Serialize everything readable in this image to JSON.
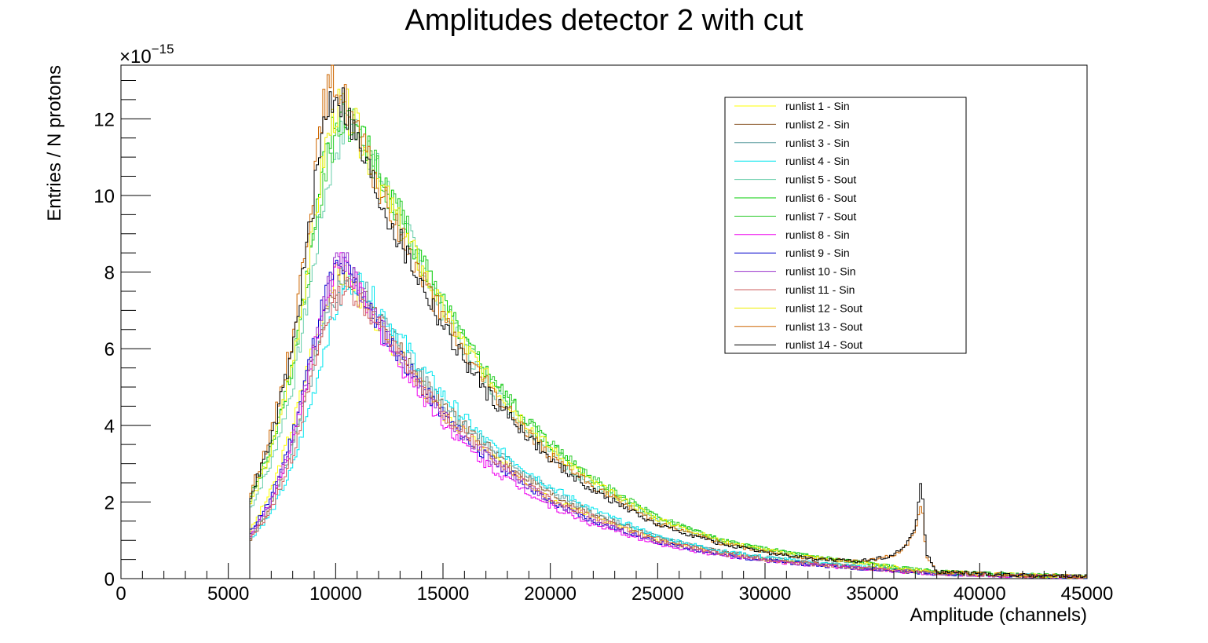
{
  "chart_data": {
    "type": "line",
    "style": "step-histogram",
    "title": "Amplitudes detector 2 with cut",
    "xlabel": "Amplitude (channels)",
    "ylabel": "Entries / N protons",
    "y_multiplier": "×10",
    "y_exponent": "−15",
    "xlim": [
      0,
      45000
    ],
    "ylim": [
      0,
      13.4
    ],
    "x_ticks": [
      0,
      5000,
      10000,
      15000,
      20000,
      25000,
      30000,
      35000,
      40000,
      45000
    ],
    "x_tick_labels": [
      "0",
      "5000",
      "10000",
      "15000",
      "20000",
      "25000",
      "30000",
      "35000",
      "40000",
      "45000"
    ],
    "y_ticks": [
      0,
      2,
      4,
      6,
      8,
      10,
      12
    ],
    "y_tick_labels": [
      "0",
      "2",
      "4",
      "6",
      "8",
      "10",
      "12"
    ],
    "legend_position": "top-right",
    "x": [
      6000,
      7000,
      8000,
      9000,
      9500,
      10000,
      10500,
      11000,
      11500,
      12000,
      13000,
      14000,
      15000,
      16000,
      17000,
      18000,
      20000,
      22000,
      25000,
      28000,
      30000,
      32000,
      34000,
      35000,
      36000,
      36500,
      37000,
      37300,
      37500,
      38000,
      40000,
      42000,
      45000
    ],
    "series": [
      {
        "name": "runlist 1 - Sin",
        "color": "#ffff00",
        "values": [
          1.2,
          2.3,
          4.0,
          6.2,
          7.2,
          7.9,
          7.9,
          7.5,
          7.0,
          6.6,
          5.8,
          5.0,
          4.3,
          3.8,
          3.3,
          2.9,
          2.1,
          1.6,
          1.0,
          0.65,
          0.5,
          0.4,
          0.3,
          0.25,
          0.2,
          0.18,
          0.16,
          0.15,
          0.15,
          0.13,
          0.1,
          0.08,
          0.05
        ]
      },
      {
        "name": "runlist 2 - Sin",
        "color": "#8b5a2b",
        "values": [
          1.0,
          1.9,
          3.5,
          5.8,
          6.9,
          7.7,
          8.0,
          7.7,
          7.2,
          6.8,
          6.0,
          5.2,
          4.5,
          4.0,
          3.5,
          3.0,
          2.2,
          1.7,
          1.05,
          0.7,
          0.55,
          0.42,
          0.32,
          0.27,
          0.22,
          0.2,
          0.18,
          0.17,
          0.16,
          0.14,
          0.11,
          0.08,
          0.05
        ]
      },
      {
        "name": "runlist 3 - Sin",
        "color": "#5f9ea0",
        "values": [
          1.1,
          2.0,
          3.4,
          5.5,
          6.6,
          7.4,
          7.9,
          7.8,
          7.4,
          6.9,
          6.1,
          5.3,
          4.6,
          4.0,
          3.5,
          3.1,
          2.3,
          1.7,
          1.1,
          0.7,
          0.55,
          0.42,
          0.32,
          0.27,
          0.22,
          0.2,
          0.18,
          0.17,
          0.16,
          0.14,
          0.11,
          0.08,
          0.05
        ]
      },
      {
        "name": "runlist 4 - Sin",
        "color": "#00e5ee",
        "values": [
          1.0,
          1.7,
          2.9,
          4.9,
          6.1,
          7.0,
          7.6,
          7.8,
          7.5,
          7.1,
          6.3,
          5.5,
          4.8,
          4.2,
          3.6,
          3.2,
          2.4,
          1.8,
          1.1,
          0.72,
          0.56,
          0.43,
          0.33,
          0.28,
          0.23,
          0.2,
          0.18,
          0.17,
          0.16,
          0.14,
          0.11,
          0.08,
          0.05
        ]
      },
      {
        "name": "runlist 5 - Sout",
        "color": "#66cdaa",
        "values": [
          1.8,
          3.0,
          5.0,
          8.2,
          10.0,
          11.2,
          11.8,
          11.7,
          11.2,
          10.6,
          9.4,
          8.2,
          7.0,
          6.0,
          5.2,
          4.5,
          3.3,
          2.4,
          1.5,
          0.95,
          0.72,
          0.55,
          0.42,
          0.35,
          0.28,
          0.25,
          0.22,
          0.2,
          0.19,
          0.17,
          0.13,
          0.1,
          0.06
        ]
      },
      {
        "name": "runlist 6 - Sout",
        "color": "#00cc00",
        "values": [
          2.1,
          3.4,
          5.6,
          9.0,
          10.9,
          11.9,
          12.2,
          11.8,
          11.2,
          10.6,
          9.5,
          8.3,
          7.2,
          6.2,
          5.4,
          4.7,
          3.5,
          2.6,
          1.6,
          1.0,
          0.78,
          0.6,
          0.46,
          0.38,
          0.3,
          0.27,
          0.24,
          0.22,
          0.21,
          0.18,
          0.14,
          0.1,
          0.06
        ]
      },
      {
        "name": "runlist 7 - Sout",
        "color": "#32cd32",
        "values": [
          2.0,
          3.3,
          5.5,
          8.8,
          10.6,
          11.6,
          12.0,
          11.7,
          11.2,
          10.6,
          9.5,
          8.3,
          7.2,
          6.2,
          5.4,
          4.7,
          3.5,
          2.6,
          1.6,
          1.0,
          0.78,
          0.6,
          0.46,
          0.38,
          0.3,
          0.27,
          0.24,
          0.22,
          0.21,
          0.18,
          0.14,
          0.1,
          0.06
        ]
      },
      {
        "name": "runlist 8 - Sin",
        "color": "#ee00ee",
        "values": [
          1.1,
          2.0,
          3.6,
          6.0,
          7.2,
          8.1,
          8.2,
          7.6,
          7.0,
          6.5,
          5.6,
          4.8,
          4.1,
          3.5,
          3.0,
          2.6,
          1.9,
          1.4,
          0.9,
          0.6,
          0.46,
          0.36,
          0.28,
          0.24,
          0.2,
          0.18,
          0.16,
          0.15,
          0.14,
          0.12,
          0.09,
          0.07,
          0.04
        ]
      },
      {
        "name": "runlist 9 - Sin",
        "color": "#0000cd",
        "values": [
          1.2,
          2.1,
          3.8,
          6.2,
          7.4,
          8.1,
          8.1,
          7.6,
          7.1,
          6.6,
          5.8,
          5.0,
          4.3,
          3.7,
          3.2,
          2.8,
          2.0,
          1.5,
          0.95,
          0.62,
          0.48,
          0.37,
          0.29,
          0.25,
          0.21,
          0.19,
          0.17,
          0.16,
          0.15,
          0.13,
          0.1,
          0.07,
          0.04
        ]
      },
      {
        "name": "runlist 10 - Sin",
        "color": "#9932cc",
        "values": [
          1.1,
          2.0,
          3.6,
          6.0,
          7.3,
          8.2,
          8.3,
          7.8,
          7.2,
          6.7,
          5.8,
          5.0,
          4.3,
          3.7,
          3.2,
          2.8,
          2.0,
          1.5,
          0.95,
          0.62,
          0.48,
          0.37,
          0.29,
          0.25,
          0.21,
          0.19,
          0.17,
          0.16,
          0.15,
          0.13,
          0.1,
          0.07,
          0.04
        ]
      },
      {
        "name": "runlist 11 - Sin",
        "color": "#cd5c5c",
        "values": [
          1.0,
          1.8,
          3.2,
          5.5,
          6.6,
          7.3,
          7.6,
          7.4,
          7.0,
          6.6,
          5.8,
          5.0,
          4.3,
          3.8,
          3.3,
          2.9,
          2.1,
          1.6,
          1.0,
          0.65,
          0.5,
          0.39,
          0.3,
          0.26,
          0.22,
          0.2,
          0.18,
          0.17,
          0.16,
          0.14,
          0.1,
          0.07,
          0.04
        ]
      },
      {
        "name": "runlist 12 - Sout",
        "color": "#eeee00",
        "values": [
          1.9,
          3.3,
          5.6,
          9.2,
          11.2,
          12.2,
          12.3,
          11.7,
          11.0,
          10.4,
          9.2,
          8.1,
          7.0,
          6.1,
          5.3,
          4.6,
          3.4,
          2.5,
          1.55,
          0.98,
          0.75,
          0.58,
          0.44,
          0.36,
          0.3,
          0.27,
          0.24,
          0.22,
          0.21,
          0.18,
          0.13,
          0.09,
          0.05
        ]
      },
      {
        "name": "runlist 13 - Sout",
        "color": "#cd6600",
        "values": [
          2.2,
          3.8,
          6.3,
          10.4,
          12.5,
          13.0,
          12.4,
          11.6,
          10.9,
          10.2,
          9.0,
          7.9,
          6.8,
          5.9,
          5.1,
          4.4,
          3.2,
          2.4,
          1.45,
          0.92,
          0.7,
          0.55,
          0.45,
          0.5,
          0.6,
          0.8,
          1.2,
          2.1,
          0.6,
          0.18,
          0.13,
          0.09,
          0.05
        ]
      },
      {
        "name": "runlist 14 - Sout",
        "color": "#000000",
        "values": [
          2.1,
          3.6,
          6.0,
          10.0,
          12.1,
          12.8,
          12.2,
          11.4,
          10.7,
          10.0,
          8.8,
          7.7,
          6.6,
          5.7,
          4.9,
          4.3,
          3.1,
          2.3,
          1.4,
          0.9,
          0.68,
          0.53,
          0.45,
          0.5,
          0.62,
          0.85,
          1.3,
          2.6,
          0.7,
          0.18,
          0.13,
          0.09,
          0.05
        ]
      }
    ]
  }
}
